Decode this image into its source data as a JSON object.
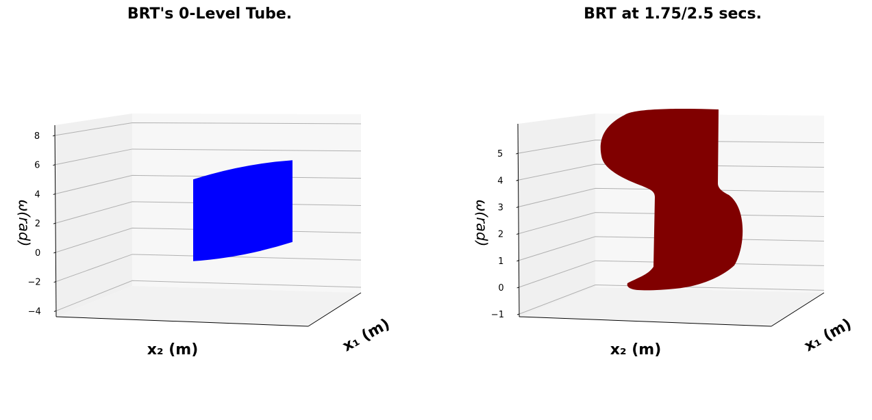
{
  "chart_data": [
    {
      "type": "surface3d",
      "title": "BRT's 0-Level Tube.",
      "xlabel": "x₂ (m)",
      "ylabel": "x₁ (m)",
      "zlabel": "ω(rad)",
      "zlim": [
        -4.4,
        8.7
      ],
      "zticks": [
        -4,
        -2,
        0,
        2,
        4,
        6,
        8
      ],
      "ztick_labels": [
        "−4",
        "−2",
        "0",
        "2",
        "4",
        "6",
        "8"
      ],
      "surface_color": "#0000ff",
      "shape": "cylinder",
      "z_extent": [
        -0.6,
        6.3
      ],
      "grid": true
    },
    {
      "type": "surface3d",
      "title": "BRT at 1.75/2.5 secs.",
      "xlabel": "x₂ (m)",
      "ylabel": "x₁ (m)",
      "zlabel": "ω(rad)",
      "zlim": [
        -1.1,
        6.1
      ],
      "zticks": [
        -1,
        0,
        1,
        2,
        3,
        4,
        5
      ],
      "ztick_labels": [
        "−1",
        "0",
        "1",
        "2",
        "3",
        "4",
        "5"
      ],
      "surface_color": "#800000",
      "shape": "s-curve",
      "z_extent": [
        -0.3,
        6.1
      ],
      "grid": true
    }
  ]
}
